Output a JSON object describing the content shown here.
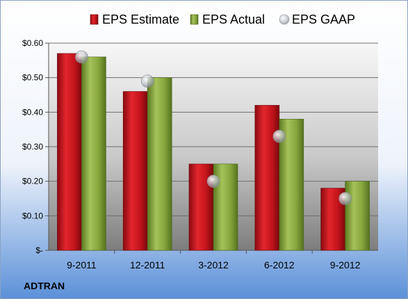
{
  "chart_data": {
    "type": "bar",
    "categories": [
      "9-2011",
      "12-2011",
      "3-2012",
      "6-2012",
      "9-2012"
    ],
    "series": [
      {
        "name": "EPS Estimate",
        "kind": "bar",
        "values": [
          0.57,
          0.46,
          0.25,
          0.42,
          0.18
        ]
      },
      {
        "name": "EPS Actual",
        "kind": "bar",
        "values": [
          0.56,
          0.5,
          0.25,
          0.38,
          0.2
        ]
      },
      {
        "name": "EPS GAAP",
        "kind": "marker",
        "values": [
          0.56,
          0.49,
          0.2,
          0.33,
          0.15
        ]
      }
    ],
    "y_ticks": [
      "$-",
      "$0.10",
      "$0.20",
      "$0.30",
      "$0.40",
      "$0.50",
      "$0.60"
    ],
    "ylim": [
      0,
      0.6
    ],
    "grid": true,
    "legend_position": "top",
    "colors": {
      "estimate": "#d4141c",
      "actual": "#8aaa3c",
      "gaap": "#c0c4c8"
    }
  },
  "footer": {
    "company": "ADTRAN"
  }
}
